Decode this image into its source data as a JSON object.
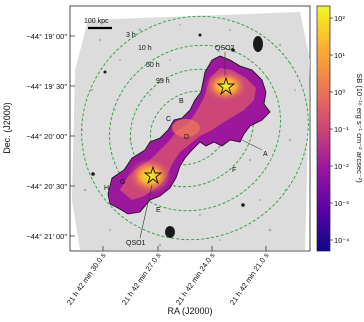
{
  "figure": {
    "scale_bar_label": "100 kpc",
    "contour_labels": [
      "3 h",
      "10 h",
      "50 h",
      "95 h"
    ],
    "region_labels": [
      "A",
      "B",
      "C",
      "D",
      "E",
      "F",
      "G",
      "H"
    ],
    "qso_labels": [
      "QSO2",
      "QSO1"
    ],
    "y_axis": {
      "title": "Dec. (J2000)",
      "ticks": [
        "−44° 19′ 00″",
        "−44° 19′ 30″",
        "−44° 20′ 00″",
        "−44° 20′ 30″",
        "−44° 21′ 00″"
      ]
    },
    "x_axis": {
      "title": "RA (J2000)",
      "ticks": [
        "21 h 42 min 30.0 s",
        "21 h 42 min 27.0 s",
        "21 h 42 min 24.0 s",
        "21 h 42 min 21.0 s"
      ]
    },
    "colorbar": {
      "title": "SB (10⁻¹⁸ erg s⁻¹ cm⁻² arcsec⁻²)",
      "ticks": [
        "10²",
        "10¹",
        "10⁰",
        "10⁻¹",
        "10⁻²",
        "10⁻³",
        "10⁻⁴"
      ],
      "colors": [
        "#0d0887",
        "#5c01a6",
        "#9c179e",
        "#cc4778",
        "#ed7953",
        "#fdb42f",
        "#f0f921"
      ]
    }
  }
}
